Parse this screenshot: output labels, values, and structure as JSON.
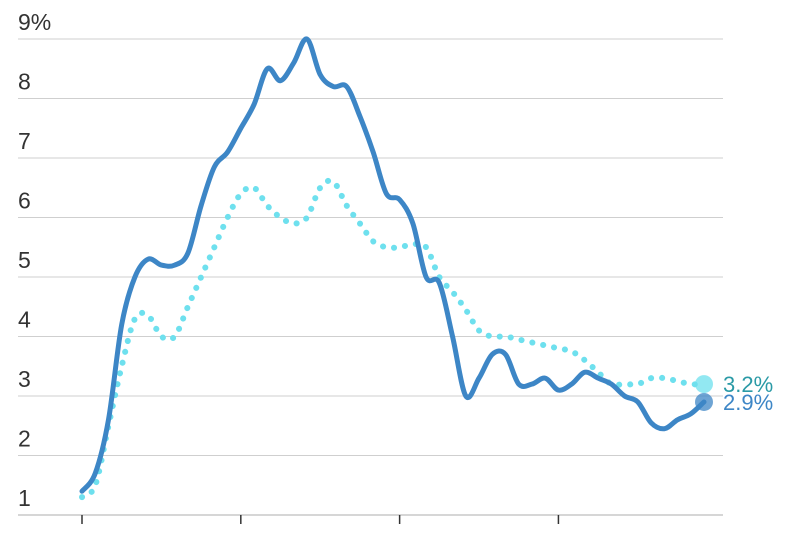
{
  "chart_data": {
    "type": "line",
    "title": "",
    "xlabel": "",
    "ylabel": "",
    "ylim": [
      1,
      9
    ],
    "yticks": [
      {
        "value": 1,
        "label": "1"
      },
      {
        "value": 2,
        "label": "2"
      },
      {
        "value": 3,
        "label": "3"
      },
      {
        "value": 4,
        "label": "4"
      },
      {
        "value": 5,
        "label": "5"
      },
      {
        "value": 6,
        "label": "6"
      },
      {
        "value": 7,
        "label": "7"
      },
      {
        "value": 8,
        "label": "8"
      },
      {
        "value": 9,
        "label": "9%"
      }
    ],
    "xlim": [
      0,
      47
    ],
    "xticks": [
      0,
      12,
      24,
      36
    ],
    "grid": true,
    "legend": "none",
    "series": [
      {
        "key": "solid",
        "style": "solid",
        "color": "#3d86c6",
        "end_label": "2.9%",
        "end_label_color": "#3d86c6",
        "x": [
          0,
          1,
          2,
          3,
          4,
          5,
          6,
          7,
          8,
          9,
          10,
          11,
          12,
          13,
          14,
          15,
          16,
          17,
          18,
          19,
          20,
          21,
          22,
          23,
          24,
          25,
          26,
          27,
          28,
          29,
          30,
          31,
          32,
          33,
          34,
          35,
          36,
          37,
          38,
          39,
          40,
          41,
          42,
          43,
          44,
          45,
          46,
          47
        ],
        "values": [
          1.4,
          1.7,
          2.6,
          4.2,
          5.0,
          5.3,
          5.2,
          5.2,
          5.4,
          6.2,
          6.85,
          7.1,
          7.5,
          7.9,
          8.5,
          8.3,
          8.6,
          9.0,
          8.4,
          8.2,
          8.2,
          7.7,
          7.1,
          6.4,
          6.3,
          5.9,
          5.0,
          4.9,
          4.0,
          3.0,
          3.3,
          3.7,
          3.7,
          3.2,
          3.2,
          3.3,
          3.1,
          3.2,
          3.4,
          3.3,
          3.2,
          3.0,
          2.9,
          2.55,
          2.45,
          2.6,
          2.7,
          2.9
        ]
      },
      {
        "key": "dotted",
        "style": "dotted",
        "color": "#6ee0ee",
        "end_label": "3.2%",
        "end_label_color": "#2a9aa6",
        "x": [
          0,
          1,
          2,
          3,
          4,
          5,
          6,
          7,
          8,
          9,
          10,
          11,
          12,
          13,
          14,
          15,
          16,
          17,
          18,
          19,
          20,
          21,
          22,
          23,
          24,
          25,
          26,
          27,
          28,
          29,
          30,
          31,
          32,
          33,
          34,
          35,
          36,
          37,
          38,
          39,
          40,
          41,
          42,
          43,
          44,
          45,
          46,
          47
        ],
        "values": [
          1.3,
          1.5,
          2.5,
          3.5,
          4.3,
          4.35,
          4.0,
          4.0,
          4.5,
          5.0,
          5.5,
          6.0,
          6.4,
          6.5,
          6.2,
          6.0,
          5.9,
          6.0,
          6.5,
          6.6,
          6.2,
          5.9,
          5.6,
          5.5,
          5.5,
          5.55,
          5.5,
          5.0,
          4.75,
          4.45,
          4.1,
          4.0,
          4.0,
          3.95,
          3.9,
          3.85,
          3.8,
          3.75,
          3.6,
          3.4,
          3.2,
          3.2,
          3.2,
          3.3,
          3.3,
          3.25,
          3.2,
          3.2
        ]
      }
    ]
  }
}
